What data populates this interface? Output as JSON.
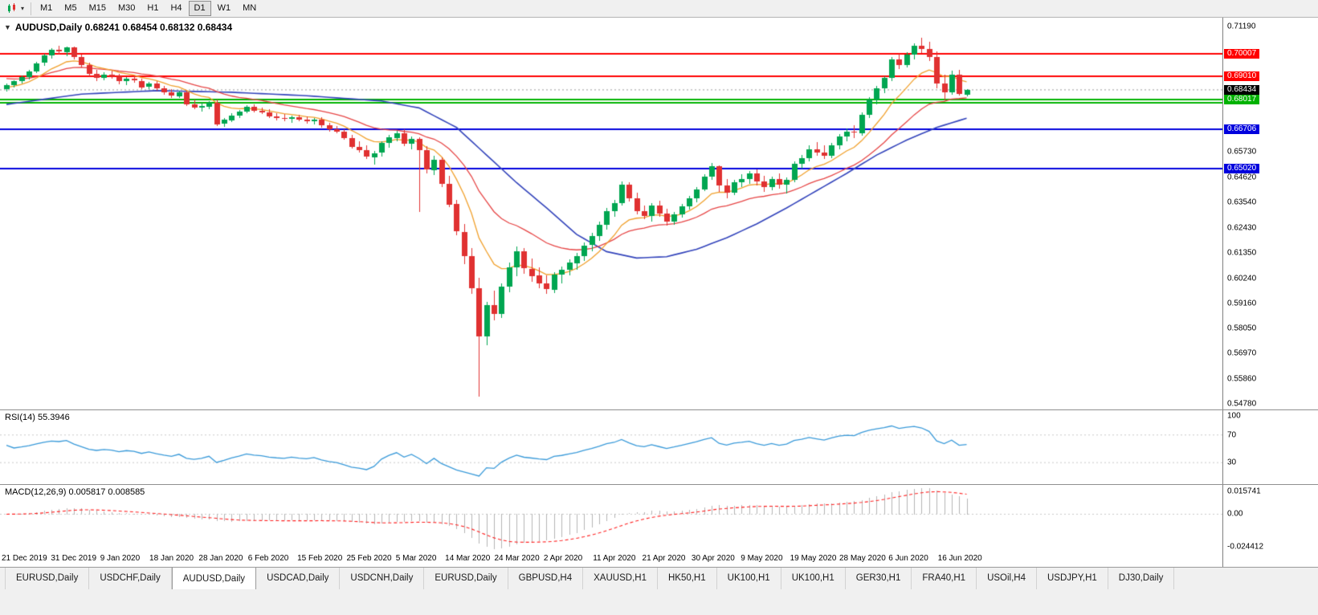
{
  "toolbar": {
    "chart_type_icon": "candlestick-chart-icon",
    "timeframes": [
      "M1",
      "M5",
      "M15",
      "M30",
      "H1",
      "H4",
      "D1",
      "W1",
      "MN"
    ],
    "active_timeframe": "D1"
  },
  "chart": {
    "title_line": "AUDUSD,Daily 0.68241 0.68454 0.68132 0.68434",
    "symbol": "AUDUSD",
    "period": "Daily",
    "ohlc": {
      "open": "0.68241",
      "high": "0.68454",
      "low": "0.68132",
      "close": "0.68434"
    }
  },
  "price_scale": {
    "plain_labels": [
      "0.71190",
      "0.65730",
      "0.64620",
      "0.63540",
      "0.62430",
      "0.61350",
      "0.60240",
      "0.59160",
      "0.58050",
      "0.56970",
      "0.55860",
      "0.54780"
    ],
    "highlighted_labels": [
      {
        "value": "0.70007",
        "bg": "#ff0000"
      },
      {
        "value": "0.69010",
        "bg": "#ff0000"
      },
      {
        "value": "0.68017",
        "bg": "#00b200"
      },
      {
        "value": "0.68434",
        "bg": "#000000"
      },
      {
        "value": "0.66706",
        "bg": "#0000dd"
      },
      {
        "value": "0.65020",
        "bg": "#0000dd"
      }
    ]
  },
  "indicators": {
    "rsi": {
      "label": "RSI(14)",
      "value": "55.3946",
      "levels": [
        "100",
        "70",
        "30"
      ],
      "level_values": [
        100,
        70,
        30
      ]
    },
    "macd": {
      "label": "MACD(12,26,9)",
      "values": "0.005817 0.008585",
      "scale_max": "0.015741",
      "scale_zero": "0.00",
      "scale_min": "-0.024412"
    }
  },
  "time_axis": {
    "labels": [
      "21 Dec 2019",
      "31 Dec 2019",
      "9 Jan 2020",
      "18 Jan 2020",
      "28 Jan 2020",
      "6 Feb 2020",
      "15 Feb 2020",
      "25 Feb 2020",
      "5 Mar 2020",
      "14 Mar 2020",
      "24 Mar 2020",
      "2 Apr 2020",
      "11 Apr 2020",
      "21 Apr 2020",
      "30 Apr 2020",
      "9 May 2020",
      "19 May 2020",
      "28 May 2020",
      "6 Jun 2020",
      "16 Jun 2020"
    ]
  },
  "tabs": {
    "active_index": 2,
    "items": [
      "EURUSD,Daily",
      "USDCHF,Daily",
      "AUDUSD,Daily",
      "USDCAD,Daily",
      "USDCNH,Daily",
      "EURUSD,Daily",
      "GBPUSD,H4",
      "XAUUSD,H1",
      "HK50,H1",
      "UK100,H1",
      "UK100,H1",
      "GER30,H1",
      "FRA40,H1",
      "USOil,H4",
      "USDJPY,H1",
      "DJ30,Daily"
    ]
  },
  "chart_data": {
    "type": "candlestick",
    "symbol": "AUDUSD",
    "timeframe": "Daily",
    "y_axis": {
      "min": 0.5478,
      "max": 0.7119
    },
    "current_price": 0.68434,
    "colors": {
      "up": "#00a651",
      "down": "#e03131",
      "ma_fast": "#f0a02c",
      "ma_mid": "#e64545",
      "ma_slow": "#3344bb",
      "rsi": "#3a9ad9",
      "rsi_level": "#c8c8c8",
      "macd_hist": "#b4b4b4",
      "macd_signal": "#ff2020",
      "bid_line": "#9a9a9a"
    },
    "hlines": [
      {
        "price": 0.70007,
        "color": "#ff0000",
        "width": 2
      },
      {
        "price": 0.6901,
        "color": "#ff0000",
        "width": 2
      },
      {
        "price": 0.68017,
        "color": "#00b200",
        "width": 2
      },
      {
        "price": 0.6788,
        "color": "#00b200",
        "width": 2
      },
      {
        "price": 0.66706,
        "color": "#0000dd",
        "width": 2
      },
      {
        "price": 0.6502,
        "color": "#0000dd",
        "width": 2
      }
    ],
    "overlays": {
      "ma_fast_period": 9,
      "ma_mid_period": 21,
      "ma_slow_points": [
        [
          0,
          0.678
        ],
        [
          10,
          0.6825
        ],
        [
          20,
          0.684
        ],
        [
          30,
          0.6833
        ],
        [
          40,
          0.6818
        ],
        [
          50,
          0.6795
        ],
        [
          55,
          0.6765
        ],
        [
          60,
          0.668
        ],
        [
          64,
          0.656
        ],
        [
          68,
          0.644
        ],
        [
          72,
          0.633
        ],
        [
          76,
          0.6215
        ],
        [
          80,
          0.614
        ],
        [
          84,
          0.6112
        ],
        [
          88,
          0.6118
        ],
        [
          92,
          0.615
        ],
        [
          96,
          0.62
        ],
        [
          100,
          0.626
        ],
        [
          104,
          0.633
        ],
        [
          108,
          0.6405
        ],
        [
          112,
          0.648
        ],
        [
          116,
          0.656
        ],
        [
          120,
          0.6625
        ],
        [
          124,
          0.668
        ],
        [
          128,
          0.672
        ]
      ]
    },
    "rsi_period": 14,
    "macd_params": [
      12,
      26,
      9
    ],
    "candles": [
      [
        0.6845,
        0.6872,
        0.6838,
        0.6864
      ],
      [
        0.6864,
        0.6886,
        0.6856,
        0.688
      ],
      [
        0.688,
        0.6906,
        0.6872,
        0.6899
      ],
      [
        0.6899,
        0.6932,
        0.6891,
        0.6924
      ],
      [
        0.6924,
        0.6966,
        0.6916,
        0.6959
      ],
      [
        0.6959,
        0.7001,
        0.695,
        0.6992
      ],
      [
        0.6992,
        0.7026,
        0.6981,
        0.7016
      ],
      [
        0.7016,
        0.7036,
        0.6999,
        0.7009
      ],
      [
        0.7009,
        0.7033,
        0.6991,
        0.7029
      ],
      [
        0.7029,
        0.7031,
        0.6976,
        0.6986
      ],
      [
        0.6986,
        0.6996,
        0.6941,
        0.6951
      ],
      [
        0.6951,
        0.6961,
        0.6901,
        0.6913
      ],
      [
        0.6913,
        0.6931,
        0.6881,
        0.6896
      ],
      [
        0.6896,
        0.6921,
        0.6886,
        0.6909
      ],
      [
        0.6909,
        0.6926,
        0.6891,
        0.6901
      ],
      [
        0.6901,
        0.6913,
        0.6869,
        0.6879
      ],
      [
        0.6879,
        0.6899,
        0.6863,
        0.6891
      ],
      [
        0.6891,
        0.6906,
        0.6876,
        0.6883
      ],
      [
        0.6883,
        0.6891,
        0.6846,
        0.6856
      ],
      [
        0.6856,
        0.6879,
        0.6849,
        0.6871
      ],
      [
        0.6871,
        0.6881,
        0.6839,
        0.6849
      ],
      [
        0.6849,
        0.6861,
        0.6821,
        0.6831
      ],
      [
        0.6831,
        0.6846,
        0.6806,
        0.6816
      ],
      [
        0.6816,
        0.6839,
        0.6809,
        0.6833
      ],
      [
        0.6833,
        0.6841,
        0.6773,
        0.6781
      ],
      [
        0.6781,
        0.6801,
        0.6759,
        0.6766
      ],
      [
        0.6766,
        0.6789,
        0.6749,
        0.6773
      ],
      [
        0.6773,
        0.6796,
        0.6761,
        0.6789
      ],
      [
        0.6789,
        0.6801,
        0.6686,
        0.6696
      ],
      [
        0.6696,
        0.6721,
        0.6683,
        0.6713
      ],
      [
        0.6713,
        0.6741,
        0.6701,
        0.6733
      ],
      [
        0.6733,
        0.6756,
        0.6721,
        0.6749
      ],
      [
        0.6749,
        0.6776,
        0.6741,
        0.6769
      ],
      [
        0.6769,
        0.6781,
        0.6746,
        0.6753
      ],
      [
        0.6753,
        0.6766,
        0.6739,
        0.6746
      ],
      [
        0.6746,
        0.6759,
        0.6721,
        0.6729
      ],
      [
        0.6729,
        0.6743,
        0.6713,
        0.6721
      ],
      [
        0.6721,
        0.6739,
        0.6706,
        0.6716
      ],
      [
        0.6716,
        0.6731,
        0.6701,
        0.6723
      ],
      [
        0.6723,
        0.6736,
        0.6709,
        0.6713
      ],
      [
        0.6713,
        0.6729,
        0.6699,
        0.6706
      ],
      [
        0.6706,
        0.6721,
        0.6693,
        0.6713
      ],
      [
        0.6713,
        0.6726,
        0.6681,
        0.6689
      ],
      [
        0.6689,
        0.6701,
        0.6663,
        0.6671
      ],
      [
        0.6671,
        0.6686,
        0.6653,
        0.6661
      ],
      [
        0.6661,
        0.6673,
        0.6626,
        0.6633
      ],
      [
        0.6633,
        0.6646,
        0.6586,
        0.6596
      ],
      [
        0.6596,
        0.6619,
        0.6571,
        0.6581
      ],
      [
        0.6581,
        0.6601,
        0.6543,
        0.6553
      ],
      [
        0.6553,
        0.6579,
        0.6521,
        0.6569
      ],
      [
        0.6569,
        0.6621,
        0.6556,
        0.6611
      ],
      [
        0.6611,
        0.6646,
        0.6591,
        0.6636
      ],
      [
        0.6636,
        0.6666,
        0.6621,
        0.6656
      ],
      [
        0.6656,
        0.6671,
        0.6596,
        0.6609
      ],
      [
        0.6609,
        0.6641,
        0.6586,
        0.6629
      ],
      [
        0.6629,
        0.6636,
        0.6313,
        0.6581
      ],
      [
        0.6581,
        0.6599,
        0.6481,
        0.6496
      ],
      [
        0.6496,
        0.6556,
        0.6471,
        0.6541
      ],
      [
        0.6541,
        0.6551,
        0.6421,
        0.6436
      ],
      [
        0.6436,
        0.6471,
        0.6336,
        0.6346
      ],
      [
        0.6346,
        0.6366,
        0.6211,
        0.6226
      ],
      [
        0.6226,
        0.6261,
        0.6086,
        0.6121
      ],
      [
        0.6121,
        0.6156,
        0.5956,
        0.5981
      ],
      [
        0.5981,
        0.6026,
        0.551,
        0.5771
      ],
      [
        0.5771,
        0.5921,
        0.5731,
        0.5906
      ],
      [
        0.5906,
        0.5971,
        0.5841,
        0.5866
      ],
      [
        0.5866,
        0.6001,
        0.5851,
        0.5986
      ],
      [
        0.5986,
        0.6091,
        0.5961,
        0.6071
      ],
      [
        0.6071,
        0.6161,
        0.6031,
        0.6141
      ],
      [
        0.6141,
        0.6156,
        0.6046,
        0.6066
      ],
      [
        0.6066,
        0.6111,
        0.6011,
        0.6036
      ],
      [
        0.6036,
        0.6071,
        0.5981,
        0.6001
      ],
      [
        0.6001,
        0.6036,
        0.5956,
        0.5976
      ],
      [
        0.5976,
        0.6051,
        0.5961,
        0.6041
      ],
      [
        0.6041,
        0.6076,
        0.6001,
        0.6061
      ],
      [
        0.6061,
        0.6106,
        0.6036,
        0.6091
      ],
      [
        0.6091,
        0.6136,
        0.6061,
        0.6121
      ],
      [
        0.6121,
        0.6181,
        0.6101,
        0.6166
      ],
      [
        0.6166,
        0.6221,
        0.6141,
        0.6206
      ],
      [
        0.6206,
        0.6271,
        0.6186,
        0.6256
      ],
      [
        0.6256,
        0.6331,
        0.6236,
        0.6316
      ],
      [
        0.6316,
        0.6366,
        0.6291,
        0.6351
      ],
      [
        0.6351,
        0.6446,
        0.6341,
        0.6431
      ],
      [
        0.6431,
        0.6441,
        0.6356,
        0.6371
      ],
      [
        0.6371,
        0.6396,
        0.6301,
        0.6316
      ],
      [
        0.6316,
        0.6341,
        0.6281,
        0.6296
      ],
      [
        0.6296,
        0.6351,
        0.6271,
        0.6341
      ],
      [
        0.6341,
        0.6361,
        0.6291,
        0.6306
      ],
      [
        0.6306,
        0.6326,
        0.6251,
        0.6271
      ],
      [
        0.6271,
        0.6311,
        0.6256,
        0.6301
      ],
      [
        0.6301,
        0.6346,
        0.6286,
        0.6336
      ],
      [
        0.6336,
        0.6381,
        0.6321,
        0.6371
      ],
      [
        0.6371,
        0.6421,
        0.6356,
        0.6411
      ],
      [
        0.6411,
        0.6476,
        0.6401,
        0.6466
      ],
      [
        0.6466,
        0.6526,
        0.6451,
        0.6511
      ],
      [
        0.6511,
        0.6516,
        0.6401,
        0.6426
      ],
      [
        0.6426,
        0.6456,
        0.6371,
        0.6396
      ],
      [
        0.6396,
        0.6451,
        0.6386,
        0.6441
      ],
      [
        0.6441,
        0.6476,
        0.6421,
        0.6456
      ],
      [
        0.6456,
        0.6491,
        0.6436,
        0.6481
      ],
      [
        0.6481,
        0.6496,
        0.6426,
        0.6446
      ],
      [
        0.6446,
        0.6471,
        0.6401,
        0.6421
      ],
      [
        0.6421,
        0.6466,
        0.6406,
        0.6456
      ],
      [
        0.6456,
        0.6481,
        0.6416,
        0.6431
      ],
      [
        0.6431,
        0.6461,
        0.6391,
        0.6451
      ],
      [
        0.6451,
        0.6531,
        0.6441,
        0.6521
      ],
      [
        0.6521,
        0.6561,
        0.6501,
        0.6546
      ],
      [
        0.6546,
        0.6601,
        0.6531,
        0.6586
      ],
      [
        0.6586,
        0.6616,
        0.6556,
        0.6571
      ],
      [
        0.6571,
        0.6601,
        0.6541,
        0.6556
      ],
      [
        0.6556,
        0.6611,
        0.6546,
        0.6601
      ],
      [
        0.6601,
        0.6651,
        0.6586,
        0.6641
      ],
      [
        0.6641,
        0.6676,
        0.6621,
        0.6661
      ],
      [
        0.6661,
        0.6691,
        0.6636,
        0.6656
      ],
      [
        0.6656,
        0.6746,
        0.6646,
        0.6736
      ],
      [
        0.6736,
        0.6811,
        0.6721,
        0.6801
      ],
      [
        0.6801,
        0.6861,
        0.6781,
        0.6851
      ],
      [
        0.6851,
        0.6901,
        0.6826,
        0.6896
      ],
      [
        0.6896,
        0.6986,
        0.6881,
        0.6976
      ],
      [
        0.6976,
        0.7001,
        0.6936,
        0.6951
      ],
      [
        0.6951,
        0.7006,
        0.6941,
        0.6996
      ],
      [
        0.6996,
        0.7046,
        0.6976,
        0.7036
      ],
      [
        0.7036,
        0.7069,
        0.7001,
        0.7021
      ],
      [
        0.7021,
        0.7051,
        0.6966,
        0.6986
      ],
      [
        0.6986,
        0.7011,
        0.6851,
        0.6871
      ],
      [
        0.6871,
        0.6911,
        0.6801,
        0.6831
      ],
      [
        0.6831,
        0.6926,
        0.6821,
        0.6909
      ],
      [
        0.6909,
        0.6929,
        0.6816,
        0.6826
      ],
      [
        0.68241,
        0.68454,
        0.68132,
        0.68434
      ]
    ]
  }
}
